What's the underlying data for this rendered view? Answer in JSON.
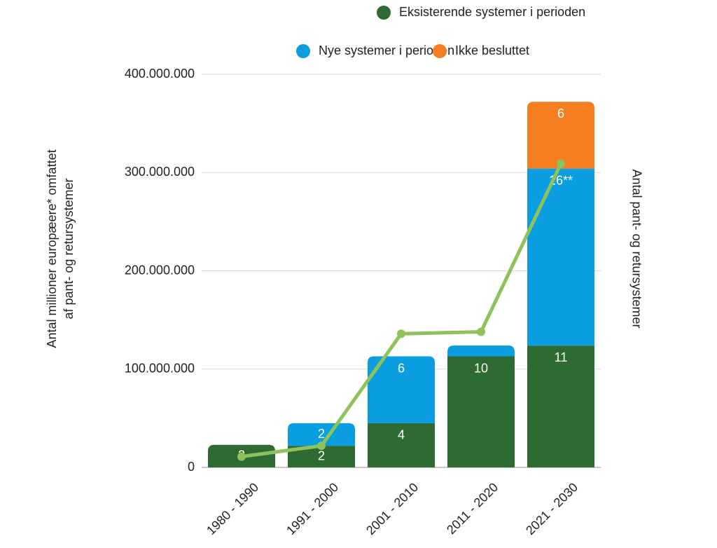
{
  "chart_data": {
    "type": "bar",
    "stacked": true,
    "categories": [
      "1980 - 1990",
      "1991 - 2000",
      "2001 - 2010",
      "2011 - 2020",
      "2021 - 2030"
    ],
    "series": [
      {
        "name": "Eksisterende systemer i perioden",
        "color": "#2e6b33",
        "values": [
          23000000,
          22000000,
          45000000,
          113000000,
          124000000
        ],
        "labels": [
          "2",
          "2",
          "4",
          "10",
          "11"
        ]
      },
      {
        "name": "Nye systemer i perioden",
        "color": "#0a9de0",
        "values": [
          null,
          23000000,
          68000000,
          11000000,
          180000000
        ],
        "labels": [
          null,
          "2",
          "6",
          null,
          "16**"
        ]
      },
      {
        "name": "Ikke besluttet",
        "color": "#f47e20",
        "values": [
          null,
          null,
          null,
          null,
          68000000
        ],
        "labels": [
          null,
          null,
          null,
          null,
          "6"
        ]
      }
    ],
    "line": {
      "type": "line",
      "color": "#8dc35a",
      "values": [
        11000000,
        22000000,
        136000000,
        138000000,
        309000000
      ]
    },
    "ylabel": [
      "Antal millioner europæere* omfattet",
      "af pant- og retursystemer"
    ],
    "y2label": "Antal pant- og retursystemer",
    "ylim": [
      0,
      400000000
    ],
    "yticks": [
      {
        "value": 0,
        "label": "0"
      },
      {
        "value": 100000000,
        "label": "100.000.000"
      },
      {
        "value": 200000000,
        "label": "200.000.000"
      },
      {
        "value": 300000000,
        "label": "300.000.000"
      },
      {
        "value": 400000000,
        "label": "400.000.000"
      }
    ],
    "grid": true
  }
}
